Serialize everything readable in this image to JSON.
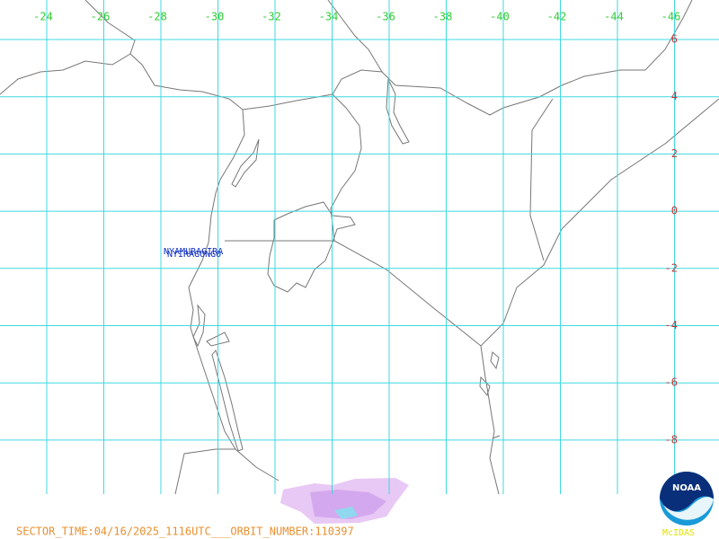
{
  "map": {
    "lon_labels": [
      -24,
      -26,
      -28,
      -30,
      -32,
      -34,
      -36,
      -38,
      -40,
      -42,
      -44,
      -46
    ],
    "lat_labels": [
      6,
      4,
      2,
      0,
      -2,
      -4,
      -6,
      -8
    ],
    "stations": [
      "NYAMURAGIRA",
      "NYIRAGONGO"
    ],
    "footer": "SECTOR_TIME:04/16/2025_1116UTC___ORBIT_NUMBER:110397",
    "logo": "NOAA",
    "credit": "McIDAS"
  }
}
